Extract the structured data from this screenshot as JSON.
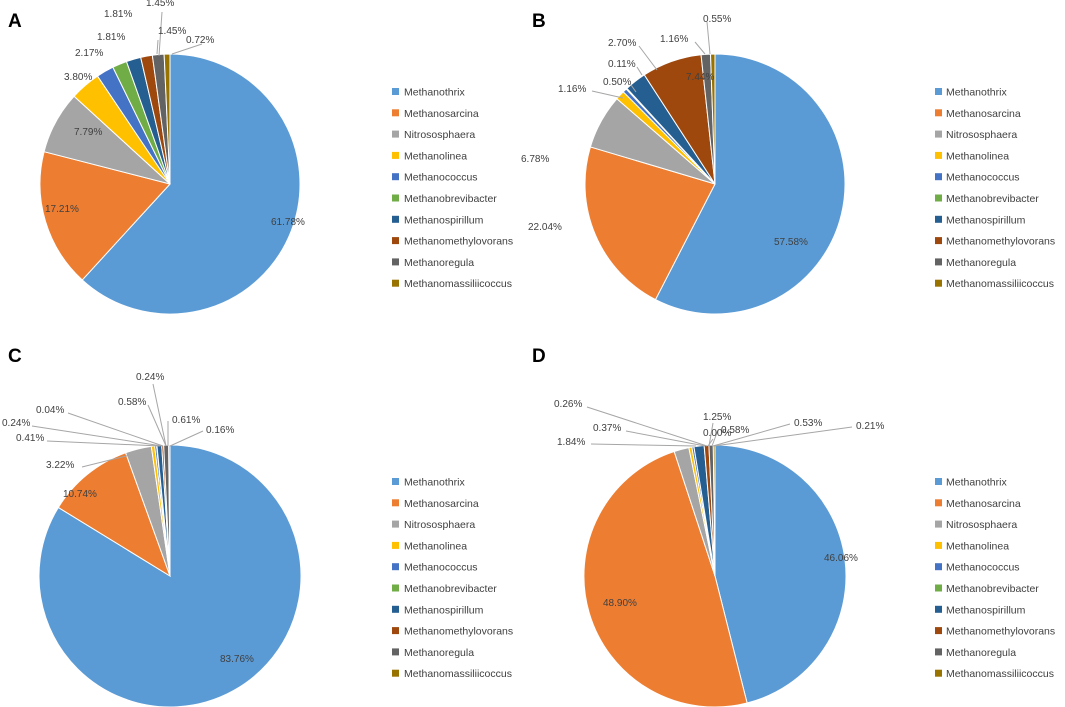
{
  "colors": {
    "Methanothrix": "#5B9BD5",
    "Methanosarcina": "#ED7D31",
    "Nitrososphaera": "#A5A5A5",
    "Methanolinea": "#FFC000",
    "Methanococcus": "#4472C4",
    "Methanobrevibacter": "#70AD47",
    "Methanospirillum": "#255E91",
    "Methanomethylovorans": "#9E480E",
    "Methanoregula": "#636363",
    "Methanomassiliicoccus": "#997300"
  },
  "chart_data": [
    {
      "type": "pie",
      "panel": "A",
      "legend_position": "right",
      "categories": [
        "Methanothrix",
        "Methanosarcina",
        "Nitrososphaera",
        "Methanolinea",
        "Methanococcus",
        "Methanobrevibacter",
        "Methanospirillum",
        "Methanomethylovorans",
        "Methanoregula",
        "Methanomassiliicoccus"
      ],
      "values": [
        61.78,
        17.21,
        7.79,
        3.8,
        2.17,
        1.81,
        1.81,
        1.45,
        1.45,
        0.72
      ],
      "labels": [
        "61.78%",
        "17.21%",
        "7.79%",
        "3.80%",
        "2.17%",
        "1.81%",
        "1.81%",
        "1.45%",
        "1.45%",
        "0.72%"
      ]
    },
    {
      "type": "pie",
      "panel": "B",
      "legend_position": "right",
      "categories": [
        "Methanothrix",
        "Methanosarcina",
        "Nitrososphaera",
        "Methanolinea",
        "Methanococcus",
        "Methanobrevibacter",
        "Methanospirillum",
        "Methanomethylovorans",
        "Methanoregula",
        "Methanomassiliicoccus"
      ],
      "values": [
        57.58,
        22.04,
        6.78,
        1.16,
        0.5,
        0.11,
        2.7,
        7.44,
        1.16,
        0.55
      ],
      "labels": [
        "57.58%",
        "22.04%",
        "6.78%",
        "1.16%",
        "0.50%",
        "0.11%",
        "2.70%",
        "7.44%",
        "1.16%",
        "0.55%"
      ]
    },
    {
      "type": "pie",
      "panel": "C",
      "legend_position": "right",
      "categories": [
        "Methanothrix",
        "Methanosarcina",
        "Nitrososphaera",
        "Methanolinea",
        "Methanococcus",
        "Methanobrevibacter",
        "Methanospirillum",
        "Methanomethylovorans",
        "Methanoregula",
        "Methanomassiliicoccus"
      ],
      "values": [
        83.76,
        10.74,
        3.22,
        0.41,
        0.24,
        0.04,
        0.58,
        0.24,
        0.61,
        0.16
      ],
      "labels": [
        "83.76%",
        "10.74%",
        "3.22%",
        "0.41%",
        "0.24%",
        "0.04%",
        "0.58%",
        "0.24%",
        "0.61%",
        "0.16%"
      ]
    },
    {
      "type": "pie",
      "panel": "D",
      "legend_position": "right",
      "categories": [
        "Methanothrix",
        "Methanosarcina",
        "Nitrososphaera",
        "Methanolinea",
        "Methanococcus",
        "Methanobrevibacter",
        "Methanospirillum",
        "Methanomethylovorans",
        "Methanoregula",
        "Methanomassiliicoccus"
      ],
      "values": [
        46.06,
        48.9,
        1.84,
        0.37,
        0.26,
        0.0,
        1.25,
        0.58,
        0.53,
        0.21
      ],
      "labels": [
        "46.06%",
        "48.90%",
        "1.84%",
        "0.37%",
        "0.26%",
        "0.00%",
        "1.25%",
        "0.58%",
        "0.53%",
        "0.21%"
      ]
    }
  ]
}
